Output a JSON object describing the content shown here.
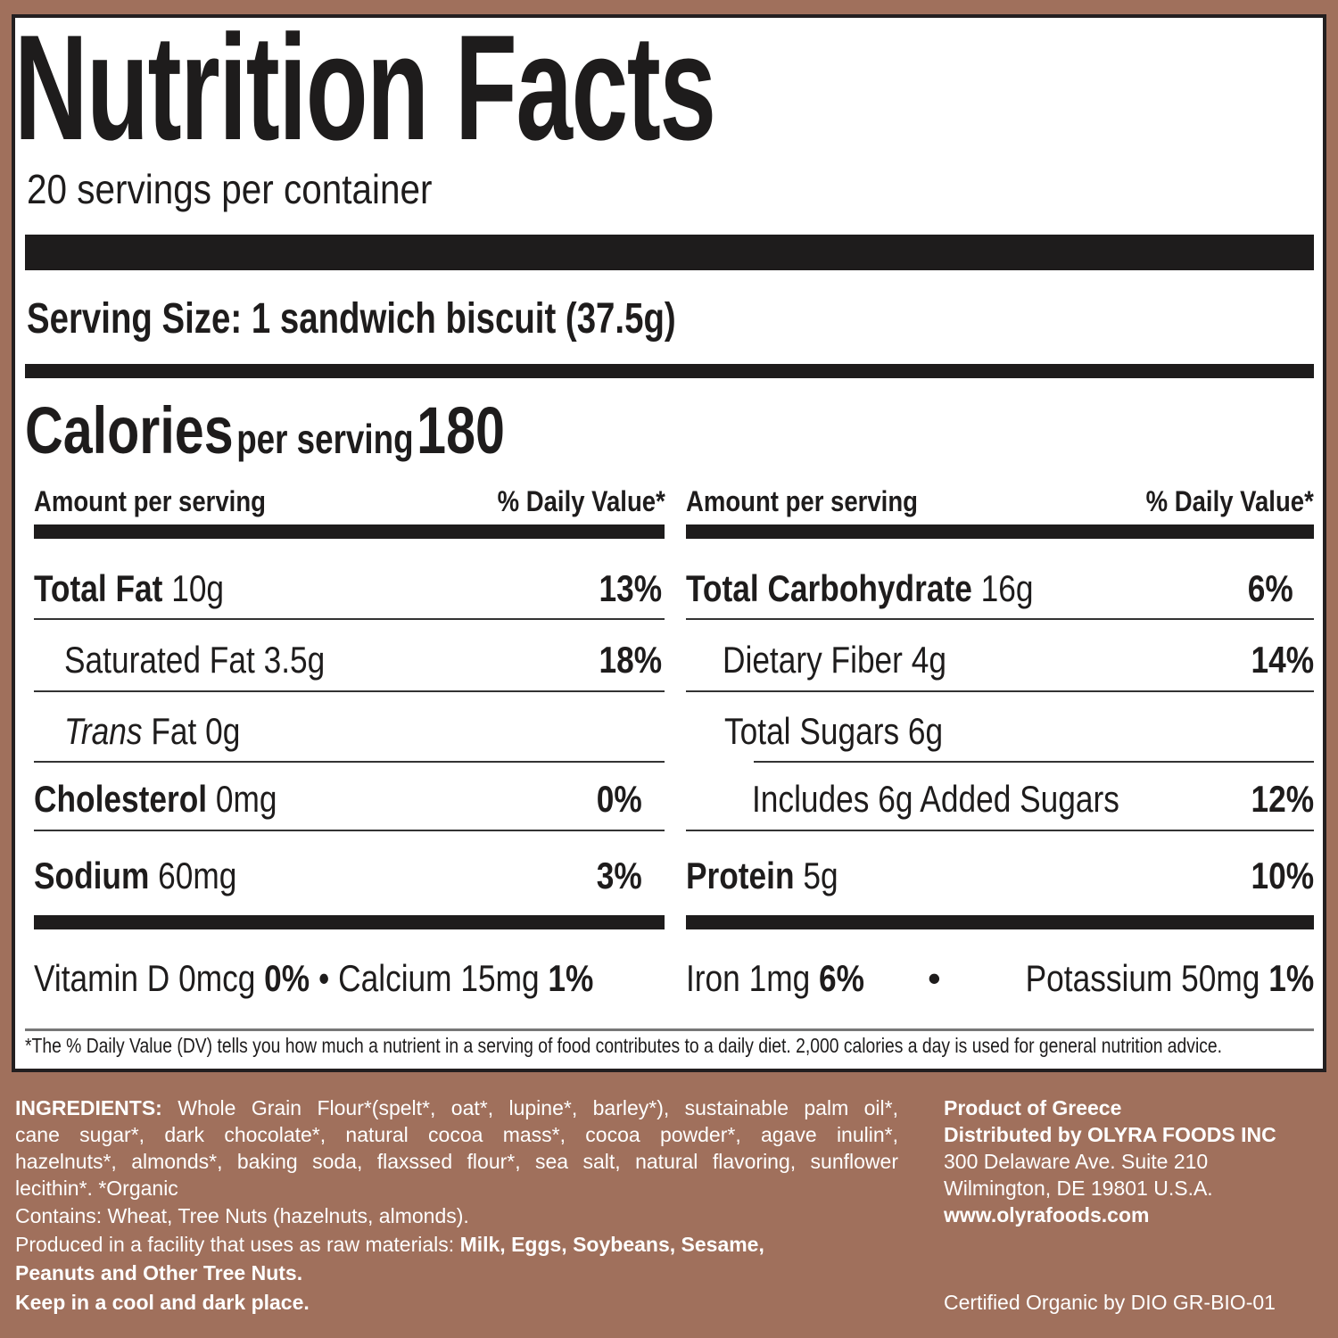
{
  "label": {
    "title": "Nutrition Facts",
    "servings": "20 servings per container",
    "serving_size_label": "Serving Size:",
    "serving_size_value": "1 sandwich biscuit (37.5g)",
    "calories_label": "Calories",
    "calories_per": "per serving",
    "calories_value": "180",
    "amount_header": "Amount per serving",
    "dv_header": "% Daily Value*",
    "left": [
      {
        "name": "Total Fat",
        "amount": "10g",
        "dv": "13%",
        "bold": true
      },
      {
        "name": "Saturated Fat",
        "amount": "3.5g",
        "dv": "18%"
      },
      {
        "name": "Trans",
        "name_suffix": "Fat",
        "amount": "0g",
        "dv": ""
      },
      {
        "name": "Cholesterol",
        "amount": "0mg",
        "dv": "0%",
        "bold": true
      },
      {
        "name": "Sodium",
        "amount": "60mg",
        "dv": "3%",
        "bold": true
      }
    ],
    "right": [
      {
        "name": "Total Carbohydrate",
        "amount": "16g",
        "dv": "6%",
        "bold": true
      },
      {
        "name": "Dietary Fiber",
        "amount": "4g",
        "dv": "14%"
      },
      {
        "name": "Total Sugars",
        "amount": "6g",
        "dv": ""
      },
      {
        "name": "Includes 6g Added Sugars",
        "amount": "",
        "dv": "12%"
      },
      {
        "name": "Protein",
        "amount": "5g",
        "dv": "10%",
        "bold": true
      }
    ],
    "vitamins": {
      "vitd": "Vitamin D 0mcg",
      "vitd_dv": "0%",
      "calcium": "Calcium 15mg",
      "calcium_dv": "1%",
      "iron": "Iron 1mg",
      "iron_dv": "6%",
      "potassium": "Potassium 50mg",
      "potassium_dv": "1%",
      "bullet": "•"
    },
    "footnote": "*The % Daily Value (DV) tells you how much a nutrient in a serving of food contributes to a daily diet. 2,000 calories a day is used for general nutrition advice."
  },
  "lower": {
    "ingredients_label": "INGREDIENTS:",
    "ingredients_lines": [
      " Whole Grain Flour*(spelt*, oat*, lupine*, barley*), sustainable palm oil*,",
      "cane sugar*, dark chocolate*, natural cocoa mass*, cocoa powder*, agave inulin*,",
      "hazelnuts*, almonds*, baking soda, flaxssed flour*, sea salt, natural flavoring, sunflower",
      "lecithin*. *Organic"
    ],
    "contains": "Contains: Wheat, Tree Nuts (hazelnuts, almonds).",
    "facility_prefix": "Produced in a facility that uses as raw materials: ",
    "facility_bold": "Milk, Eggs, Soybeans, Sesame,",
    "facility_bold2": "Peanuts and Other Tree Nuts.",
    "storage": "Keep in a cool and dark place.",
    "origin": "Product of Greece",
    "distributor": "Distributed by OLYRA FOODS INC",
    "address1": "300 Delaware Ave. Suite 210",
    "address2": "Wilmington, DE 19801 U.S.A.",
    "website": "www.olyrafoods.com",
    "certification": "Certified Organic by DIO GR-BIO-01"
  },
  "colors": {
    "background": "#a0705c",
    "ink": "#1e1c1c",
    "panel": "#ffffff"
  }
}
